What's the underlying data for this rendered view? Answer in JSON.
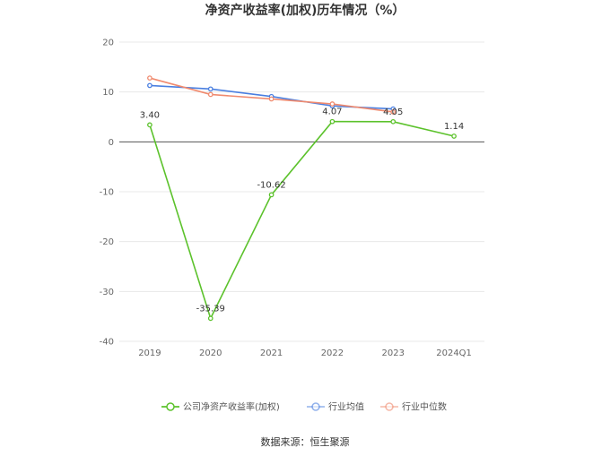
{
  "chart_data": {
    "type": "line",
    "title": "净资产收益率(加权)历年情况（%）",
    "categories": [
      "2019",
      "2020",
      "2021",
      "2022",
      "2023",
      "2024Q1"
    ],
    "ylim": [
      -40,
      20
    ],
    "yticks": [
      20,
      10,
      0,
      -10,
      -20,
      -30,
      -40
    ],
    "grid": true,
    "legend_position": "bottom",
    "series": [
      {
        "name": "公司净资产收益率(加权)",
        "color": "#5cc22c",
        "values": [
          3.4,
          -35.39,
          -10.62,
          4.07,
          4.05,
          1.14
        ],
        "labels": [
          "3.40",
          "-35.39",
          "-10.62",
          "4.07",
          "4.05",
          "1.14"
        ]
      },
      {
        "name": "行业均值",
        "color": "#4a7fe0",
        "values": [
          11.3,
          10.6,
          9.1,
          7.2,
          6.6,
          null
        ]
      },
      {
        "name": "行业中位数",
        "color": "#f08a6e",
        "values": [
          12.8,
          9.5,
          8.6,
          7.6,
          6.0,
          null
        ]
      }
    ]
  },
  "source": "数据来源：恒生聚源"
}
